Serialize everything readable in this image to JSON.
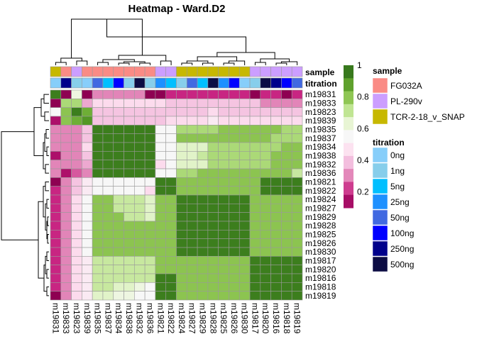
{
  "chart_data": {
    "type": "heatmap",
    "title": "Heatmap - Ward.D2",
    "samples": [
      "m19831",
      "m19833",
      "m19823",
      "m19839",
      "m19835",
      "m19837",
      "m19834",
      "m19838",
      "m19832",
      "m19836",
      "m19821",
      "m19822",
      "m19824",
      "m19827",
      "m19829",
      "m19828",
      "m19825",
      "m19826",
      "m19830",
      "m19817",
      "m19820",
      "m19816",
      "m19818",
      "m19819"
    ],
    "annotation_labels": {
      "sample": "sample",
      "titration": "titration"
    },
    "annotation_colors": {
      "sample": {
        "FG032A": "#fa8b85",
        "PL-290v": "#cc9eff",
        "TCR-2-18_v_SNAP": "#c7b800"
      },
      "titration": {
        "0ng": "#87cefa",
        "1ng": "#87ceeb",
        "5ng": "#00bfff",
        "25ng": "#1e90ff",
        "50ng": "#4169e1",
        "100ng": "#0000ff",
        "250ng": "#00008b",
        "500ng": "#0c0c44"
      }
    },
    "column_sample": [
      "TCR-2-18_v_SNAP",
      "FG032A",
      "PL-290v",
      "FG032A",
      "FG032A",
      "FG032A",
      "FG032A",
      "FG032A",
      "FG032A",
      "FG032A",
      "PL-290v",
      "PL-290v",
      "TCR-2-18_v_SNAP",
      "TCR-2-18_v_SNAP",
      "TCR-2-18_v_SNAP",
      "TCR-2-18_v_SNAP",
      "TCR-2-18_v_SNAP",
      "TCR-2-18_v_SNAP",
      "TCR-2-18_v_SNAP",
      "PL-290v",
      "PL-290v",
      "PL-290v",
      "PL-290v",
      "PL-290v"
    ],
    "column_titration": [
      "0ng",
      "250ng",
      "1ng",
      "0ng",
      "50ng",
      "5ng",
      "100ng",
      "1ng",
      "500ng",
      "1ng",
      "25ng",
      "5ng",
      "1ng",
      "50ng",
      "5ng",
      "500ng",
      "25ng",
      "100ng",
      "0ng",
      "1ng",
      "500ng",
      "250ng",
      "100ng",
      "50ng"
    ],
    "color_legend": {
      "ticks": [
        1,
        0.8,
        0.6,
        0.4,
        0.2
      ],
      "range": [
        0.1,
        1
      ]
    },
    "values": [
      [
        0.95,
        0.1,
        0.6,
        0.1,
        0.3,
        0.3,
        0.3,
        0.3,
        0.3,
        0.1,
        0.1,
        0.2,
        0.2,
        0.2,
        0.2,
        0.2,
        0.2,
        0.2,
        0.2,
        0.1,
        0.2,
        0.2,
        0.1,
        0.2
      ],
      [
        0.1,
        0.75,
        0.75,
        0.35,
        0.45,
        0.45,
        0.45,
        0.45,
        0.45,
        0.45,
        0.45,
        0.4,
        0.4,
        0.4,
        0.4,
        0.4,
        0.4,
        0.4,
        0.4,
        0.4,
        0.3,
        0.3,
        0.3,
        0.3
      ],
      [
        0.55,
        0.8,
        0.95,
        0.85,
        0.4,
        0.4,
        0.4,
        0.4,
        0.4,
        0.4,
        0.4,
        0.4,
        0.4,
        0.4,
        0.4,
        0.45,
        0.4,
        0.4,
        0.4,
        0.4,
        0.4,
        0.4,
        0.4,
        0.4
      ],
      [
        0.15,
        0.8,
        0.85,
        0.9,
        0.4,
        0.4,
        0.4,
        0.4,
        0.4,
        0.4,
        0.4,
        0.45,
        0.45,
        0.45,
        0.45,
        0.5,
        0.45,
        0.45,
        0.45,
        0.45,
        0.45,
        0.45,
        0.45,
        0.45
      ],
      [
        0.3,
        0.3,
        0.3,
        0.4,
        0.95,
        0.95,
        0.95,
        0.95,
        0.95,
        0.95,
        0.55,
        0.55,
        0.75,
        0.75,
        0.75,
        0.75,
        0.8,
        0.8,
        0.8,
        0.8,
        0.8,
        0.8,
        0.75,
        0.75
      ],
      [
        0.3,
        0.3,
        0.3,
        0.4,
        0.95,
        0.95,
        0.95,
        0.95,
        0.95,
        0.95,
        0.55,
        0.55,
        0.8,
        0.8,
        0.8,
        0.8,
        0.8,
        0.8,
        0.8,
        0.8,
        0.8,
        0.75,
        0.75,
        0.75
      ],
      [
        0.3,
        0.3,
        0.3,
        0.45,
        0.95,
        0.95,
        0.95,
        0.95,
        0.95,
        0.95,
        0.55,
        0.55,
        0.65,
        0.65,
        0.65,
        0.75,
        0.75,
        0.75,
        0.75,
        0.75,
        0.75,
        0.75,
        0.8,
        0.8
      ],
      [
        0.15,
        0.3,
        0.3,
        0.4,
        0.95,
        0.95,
        0.95,
        0.95,
        0.95,
        0.95,
        0.55,
        0.55,
        0.65,
        0.65,
        0.7,
        0.75,
        0.75,
        0.75,
        0.75,
        0.75,
        0.75,
        0.8,
        0.8,
        0.8
      ],
      [
        0.3,
        0.3,
        0.3,
        0.35,
        0.95,
        0.95,
        0.95,
        0.95,
        0.95,
        0.95,
        0.45,
        0.55,
        0.65,
        0.65,
        0.65,
        0.75,
        0.75,
        0.75,
        0.75,
        0.75,
        0.75,
        0.8,
        0.8,
        0.8
      ],
      [
        0.3,
        0.15,
        0.25,
        0.3,
        0.95,
        0.95,
        0.95,
        0.95,
        0.95,
        0.95,
        0.55,
        0.55,
        0.75,
        0.75,
        0.8,
        0.8,
        0.8,
        0.8,
        0.8,
        0.8,
        0.8,
        0.8,
        0.8,
        0.7
      ],
      [
        0.1,
        0.3,
        0.4,
        0.5,
        0.55,
        0.55,
        0.55,
        0.55,
        0.55,
        0.55,
        0.95,
        0.95,
        0.8,
        0.8,
        0.8,
        0.8,
        0.8,
        0.8,
        0.8,
        0.8,
        0.95,
        0.95,
        0.95,
        0.95
      ],
      [
        0.2,
        0.3,
        0.4,
        0.5,
        0.55,
        0.55,
        0.55,
        0.55,
        0.55,
        0.45,
        0.95,
        0.95,
        0.8,
        0.8,
        0.8,
        0.8,
        0.8,
        0.8,
        0.8,
        0.8,
        0.95,
        0.95,
        0.95,
        0.95
      ],
      [
        0.2,
        0.3,
        0.45,
        0.55,
        0.8,
        0.8,
        0.7,
        0.7,
        0.7,
        0.65,
        0.8,
        0.8,
        0.95,
        0.95,
        0.95,
        0.95,
        0.95,
        0.95,
        0.95,
        0.8,
        0.8,
        0.8,
        0.8,
        0.8
      ],
      [
        0.2,
        0.3,
        0.45,
        0.55,
        0.8,
        0.8,
        0.7,
        0.7,
        0.7,
        0.65,
        0.8,
        0.8,
        0.95,
        0.95,
        0.95,
        0.95,
        0.95,
        0.95,
        0.95,
        0.8,
        0.8,
        0.8,
        0.8,
        0.8
      ],
      [
        0.2,
        0.3,
        0.45,
        0.55,
        0.8,
        0.8,
        0.8,
        0.7,
        0.7,
        0.65,
        0.8,
        0.8,
        0.95,
        0.95,
        0.95,
        0.95,
        0.95,
        0.95,
        0.95,
        0.8,
        0.8,
        0.8,
        0.8,
        0.8
      ],
      [
        0.2,
        0.3,
        0.45,
        0.55,
        0.8,
        0.8,
        0.8,
        0.8,
        0.8,
        0.8,
        0.8,
        0.8,
        0.95,
        0.95,
        0.95,
        0.95,
        0.95,
        0.95,
        0.95,
        0.8,
        0.8,
        0.8,
        0.8,
        0.8
      ],
      [
        0.2,
        0.3,
        0.45,
        0.55,
        0.8,
        0.8,
        0.8,
        0.8,
        0.8,
        0.8,
        0.8,
        0.8,
        0.95,
        0.95,
        0.95,
        0.95,
        0.95,
        0.95,
        0.95,
        0.8,
        0.8,
        0.8,
        0.8,
        0.8
      ],
      [
        0.2,
        0.3,
        0.45,
        0.55,
        0.8,
        0.8,
        0.8,
        0.8,
        0.8,
        0.8,
        0.8,
        0.8,
        0.95,
        0.95,
        0.95,
        0.95,
        0.95,
        0.95,
        0.95,
        0.8,
        0.8,
        0.8,
        0.8,
        0.8
      ],
      [
        0.2,
        0.3,
        0.45,
        0.55,
        0.8,
        0.8,
        0.8,
        0.8,
        0.8,
        0.8,
        0.8,
        0.8,
        0.95,
        0.95,
        0.95,
        0.95,
        0.95,
        0.95,
        0.95,
        0.8,
        0.8,
        0.8,
        0.8,
        0.8
      ],
      [
        0.2,
        0.3,
        0.45,
        0.5,
        0.7,
        0.7,
        0.7,
        0.7,
        0.7,
        0.7,
        0.8,
        0.8,
        0.8,
        0.8,
        0.8,
        0.8,
        0.8,
        0.8,
        0.8,
        0.95,
        0.95,
        0.95,
        0.95,
        0.95
      ],
      [
        0.2,
        0.3,
        0.45,
        0.5,
        0.7,
        0.7,
        0.7,
        0.7,
        0.7,
        0.7,
        0.8,
        0.8,
        0.8,
        0.8,
        0.8,
        0.8,
        0.8,
        0.8,
        0.8,
        0.95,
        0.95,
        0.95,
        0.95,
        0.95
      ],
      [
        0.2,
        0.3,
        0.45,
        0.5,
        0.7,
        0.7,
        0.7,
        0.7,
        0.7,
        0.7,
        0.95,
        0.95,
        0.8,
        0.8,
        0.8,
        0.8,
        0.8,
        0.8,
        0.8,
        0.95,
        0.95,
        0.95,
        0.95,
        0.95
      ],
      [
        0.2,
        0.3,
        0.45,
        0.5,
        0.7,
        0.7,
        0.65,
        0.65,
        0.6,
        0.55,
        0.95,
        0.95,
        0.8,
        0.8,
        0.8,
        0.8,
        0.8,
        0.8,
        0.8,
        0.95,
        0.95,
        0.95,
        0.95,
        0.95
      ],
      [
        0.1,
        0.3,
        0.45,
        0.5,
        0.65,
        0.65,
        0.6,
        0.6,
        0.55,
        0.55,
        0.95,
        0.95,
        0.8,
        0.8,
        0.8,
        0.8,
        0.8,
        0.8,
        0.8,
        0.95,
        0.95,
        0.95,
        0.95,
        0.95
      ]
    ],
    "legend_placement": "right",
    "grid": false
  }
}
